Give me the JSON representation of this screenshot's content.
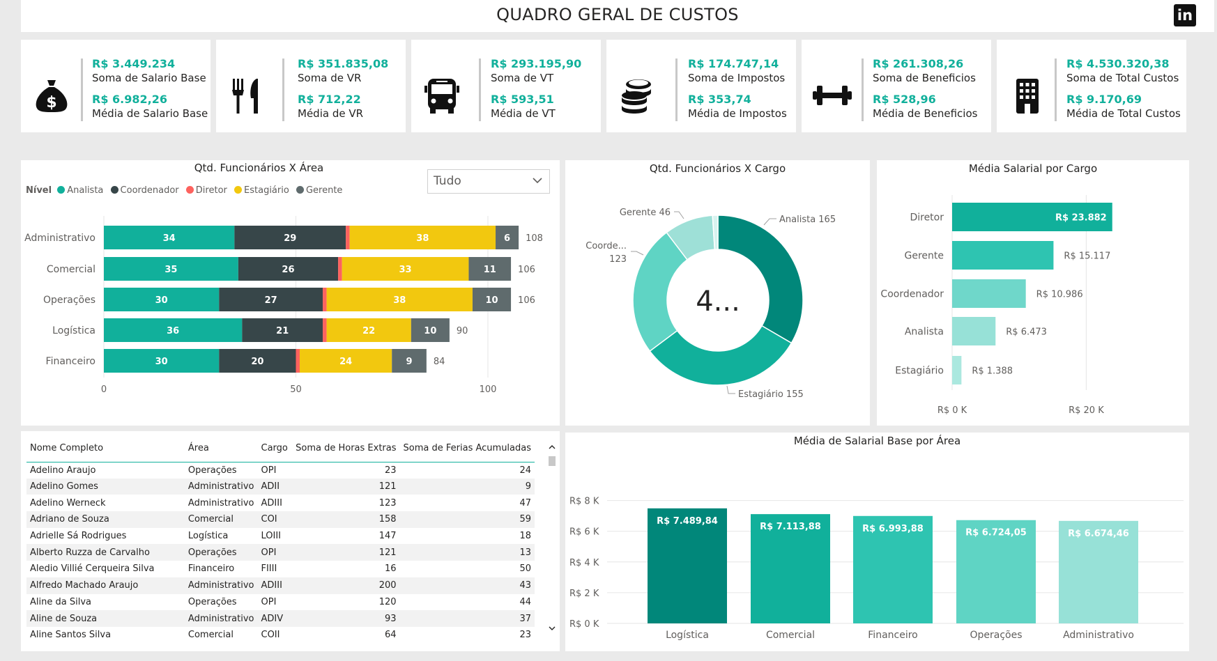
{
  "header": {
    "title": "QUADRO GERAL DE CUSTOS",
    "logo": "in"
  },
  "kpis": [
    {
      "icon": "money-bag-icon",
      "sum_value": "R$ 3.449.234",
      "sum_label": "Soma de Salario Base",
      "avg_value": "R$ 6.982,26",
      "avg_label": "Média de Salario Base"
    },
    {
      "icon": "fork-knife-icon",
      "sum_value": "R$ 351.835,08",
      "sum_label": "Soma de VR",
      "avg_value": "R$ 712,22",
      "avg_label": "Média de VR"
    },
    {
      "icon": "bus-icon",
      "sum_value": "R$ 293.195,90",
      "sum_label": "Soma de VT",
      "avg_value": "R$ 593,51",
      "avg_label": "Média de VT"
    },
    {
      "icon": "coins-icon",
      "sum_value": "R$ 174.747,14",
      "sum_label": "Soma de Impostos",
      "avg_value": "R$ 353,74",
      "avg_label": "Média de Impostos"
    },
    {
      "icon": "dumbbell-icon",
      "sum_value": "R$ 261.308,26",
      "sum_label": "Soma de Beneficios",
      "avg_value": "R$ 528,96",
      "avg_label": "Média de Beneficios"
    },
    {
      "icon": "building-icon",
      "sum_value": "R$ 4.530.320,38",
      "sum_label": "Soma de Total Custos",
      "avg_value": "R$ 9.170,69",
      "avg_label": "Média de Total Custos"
    }
  ],
  "colors": {
    "analista": "#11b09b",
    "coordenador": "#374649",
    "diretor": "#fd625e",
    "estagiario": "#f2c80f",
    "gerente": "#5f6b6d"
  },
  "area_chart_filter": {
    "selected": "Tudo"
  },
  "chart_data": [
    {
      "type": "bar",
      "orientation": "horizontal",
      "stacked": true,
      "title": "Qtd. Funcionários X Área",
      "legend_title": "Nível",
      "legend_position": "top-left",
      "categories": [
        "Administrativo",
        "Comercial",
        "Operações",
        "Logística",
        "Financeiro"
      ],
      "series": [
        {
          "name": "Analista",
          "values": [
            34,
            35,
            30,
            36,
            30
          ],
          "labels": [
            "34",
            "35",
            "30",
            "36",
            "30"
          ]
        },
        {
          "name": "Coordenador",
          "values": [
            29,
            26,
            27,
            21,
            20
          ],
          "labels": [
            "29",
            "26",
            "27",
            "21",
            "20"
          ]
        },
        {
          "name": "Diretor",
          "values": [
            1,
            1,
            1,
            1,
            1
          ],
          "labels": [
            "",
            "",
            "",
            "",
            ""
          ]
        },
        {
          "name": "Estagiário",
          "values": [
            38,
            33,
            38,
            22,
            24
          ],
          "labels": [
            "38",
            "33",
            "38",
            "22",
            "24"
          ]
        },
        {
          "name": "Gerente",
          "values": [
            6,
            11,
            10,
            10,
            9
          ],
          "labels": [
            "6",
            "11",
            "10",
            "10",
            "9"
          ]
        }
      ],
      "totals": [
        "108",
        "106",
        "106",
        "90",
        "84"
      ],
      "xlim": [
        0,
        110
      ],
      "xticks": [
        "0",
        "50",
        "100"
      ],
      "grid": true
    },
    {
      "type": "pie",
      "donut": true,
      "title": "Qtd. Funcionários X Cargo",
      "center_label": "4...",
      "slices": [
        {
          "name": "Analista",
          "value": 165,
          "label": "Analista 165",
          "color": "#01877a"
        },
        {
          "name": "Estagiário",
          "value": 155,
          "label": "Estagiário 155",
          "color": "#11b09b"
        },
        {
          "name": "Coordenador",
          "value": 123,
          "label_line1": "Coorde...",
          "label_line2": "123",
          "color": "#5fd4c4"
        },
        {
          "name": "Gerente",
          "value": 46,
          "label": "Gerente 46",
          "color": "#9ee0d7"
        },
        {
          "name": "Diretor",
          "value": 5,
          "label": "",
          "color": "#d7f3ef"
        }
      ]
    },
    {
      "type": "bar",
      "orientation": "horizontal",
      "title": "Média Salarial por Cargo",
      "categories": [
        "Diretor",
        "Gerente",
        "Coordenador",
        "Analista",
        "Estagiário"
      ],
      "values": [
        23882,
        15117,
        10986,
        6473,
        1388
      ],
      "labels": [
        "R$ 23.882",
        "R$ 15.117",
        "R$ 10.986",
        "R$ 6.473",
        "R$ 1.388"
      ],
      "colors": [
        "#11b09b",
        "#2ec4b1",
        "#6fd7ca",
        "#97e1d7",
        "#abe8df"
      ],
      "xlim": [
        0,
        30000
      ],
      "xticks": [
        "R$ 0 K",
        "R$ 20 K"
      ],
      "grid": true
    },
    {
      "type": "bar",
      "title": "Média de Salarial Base por Área",
      "categories": [
        "Logística",
        "Comercial",
        "Financeiro",
        "Operações",
        "Administrativo"
      ],
      "values": [
        7489.84,
        7113.88,
        6993.88,
        6724.05,
        6674.46
      ],
      "labels": [
        "R$ 7.489,84",
        "R$ 7.113,88",
        "R$ 6.993,88",
        "R$ 6.724,05",
        "R$ 6.674,46"
      ],
      "colors": [
        "#01877a",
        "#11b09b",
        "#2ec4b1",
        "#5fd4c4",
        "#97e1d7"
      ],
      "ylim": [
        0,
        8000
      ],
      "yticks": [
        "R$ 0 K",
        "R$ 2 K",
        "R$ 4 K",
        "R$ 6 K",
        "R$ 8 K"
      ],
      "grid": true
    }
  ],
  "table": {
    "columns": [
      "Nome Completo",
      "Área",
      "Cargo",
      "Soma de Horas Extras",
      "Soma de Ferias Acumuladas"
    ],
    "rows": [
      [
        "Adelino Araujo",
        "Operações",
        "OPI",
        "23",
        "24"
      ],
      [
        "Adelino Gomes",
        "Administrativo",
        "ADII",
        "121",
        "9"
      ],
      [
        "Adelino Werneck",
        "Administrativo",
        "ADIII",
        "123",
        "47"
      ],
      [
        "Adriano de Souza",
        "Comercial",
        "COI",
        "158",
        "59"
      ],
      [
        "Adrielle Sá Rodrigues",
        "Logística",
        "LOIII",
        "147",
        "18"
      ],
      [
        "Alberto Ruzza de Carvalho",
        "Operações",
        "OPI",
        "121",
        "13"
      ],
      [
        "Aledio Villié Cerqueira Silva",
        "Financeiro",
        "FIIII",
        "16",
        "50"
      ],
      [
        "Alfredo Machado Araujo",
        "Administrativo",
        "ADIII",
        "200",
        "43"
      ],
      [
        "Aline da Silva",
        "Operações",
        "OPI",
        "120",
        "44"
      ],
      [
        "Aline de Souza",
        "Administrativo",
        "ADIV",
        "93",
        "37"
      ],
      [
        "Aline Santos Silva",
        "Comercial",
        "COII",
        "64",
        "23"
      ]
    ]
  }
}
